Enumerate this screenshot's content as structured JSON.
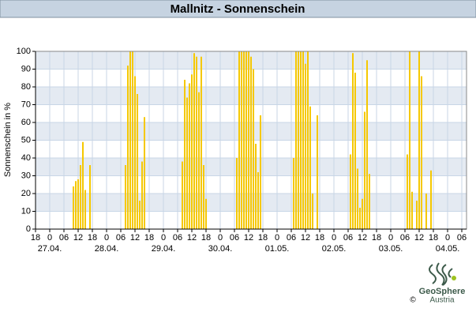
{
  "chart_data": {
    "type": "bar",
    "title": "Mallnitz - Sonnenschein",
    "ylabel": "Sonnenschein in %",
    "x": [
      10,
      11,
      12,
      13,
      14,
      15,
      17,
      32,
      33,
      34,
      35,
      36,
      37,
      38,
      39,
      40,
      56,
      57,
      58,
      59,
      60,
      61,
      62,
      63,
      64,
      65,
      66,
      79,
      80,
      81,
      82,
      83,
      84,
      85,
      86,
      87,
      88,
      89,
      103,
      104,
      105,
      106,
      107,
      108,
      109,
      110,
      111,
      113,
      127,
      128,
      129,
      130,
      131,
      132,
      133,
      134,
      135,
      151,
      152,
      153,
      155,
      156,
      157,
      159,
      161
    ],
    "values": [
      24,
      27,
      28,
      36,
      49,
      22,
      36,
      36,
      92,
      100,
      100,
      86,
      76,
      16,
      38,
      63,
      38,
      84,
      74,
      82,
      87,
      99,
      97,
      77,
      97,
      36,
      17,
      40,
      100,
      100,
      100,
      100,
      100,
      97,
      90,
      48,
      32,
      64,
      40,
      100,
      100,
      100,
      100,
      93,
      100,
      69,
      20,
      64,
      42,
      99,
      88,
      34,
      12,
      17,
      66,
      95,
      31,
      42,
      100,
      21,
      16,
      100,
      86,
      20,
      33
    ],
    "color": "#f5c800",
    "xlim": [
      -6,
      176
    ],
    "xticks": [
      {
        "value": -6,
        "label": "18"
      },
      0,
      {
        "value": 6,
        "label": "06"
      },
      12,
      18,
      {
        "value": 24,
        "label": "0"
      },
      {
        "value": 30,
        "label": "06"
      },
      {
        "value": 36,
        "label": "12"
      },
      {
        "value": 42,
        "label": "18"
      },
      {
        "value": 48,
        "label": "0"
      },
      {
        "value": 54,
        "label": "06"
      },
      {
        "value": 60,
        "label": "12"
      },
      {
        "value": 66,
        "label": "18"
      },
      {
        "value": 72,
        "label": "0"
      },
      {
        "value": 78,
        "label": "06"
      },
      {
        "value": 84,
        "label": "12"
      },
      {
        "value": 90,
        "label": "18"
      },
      {
        "value": 96,
        "label": "0"
      },
      {
        "value": 102,
        "label": "06"
      },
      {
        "value": 108,
        "label": "12"
      },
      {
        "value": 114,
        "label": "18"
      },
      {
        "value": 120,
        "label": "0"
      },
      {
        "value": 126,
        "label": "06"
      },
      {
        "value": 132,
        "label": "12"
      },
      {
        "value": 138,
        "label": "18"
      },
      {
        "value": 144,
        "label": "0"
      },
      {
        "value": 150,
        "label": "06"
      },
      {
        "value": 156,
        "label": "12"
      },
      {
        "value": 162,
        "label": "18"
      },
      {
        "value": 168,
        "label": "0"
      },
      {
        "value": 174,
        "label": "06"
      }
    ],
    "xdates": [
      {
        "value": 0,
        "label": "27.04."
      },
      {
        "value": 24,
        "label": "28.04."
      },
      {
        "value": 48,
        "label": "29.04."
      },
      {
        "value": 72,
        "label": "30.04."
      },
      {
        "value": 96,
        "label": "01.05."
      },
      {
        "value": 120,
        "label": "02.05."
      },
      {
        "value": 144,
        "label": "03.05."
      },
      {
        "value": 168,
        "label": "04.05."
      }
    ],
    "ylim": [
      0,
      100
    ],
    "yticks": [
      0,
      10,
      20,
      30,
      40,
      50,
      60,
      70,
      80,
      90,
      100
    ],
    "grid": true
  },
  "logo": {
    "name": "GeoSphere",
    "sub": "Austria",
    "copyright": "©"
  }
}
